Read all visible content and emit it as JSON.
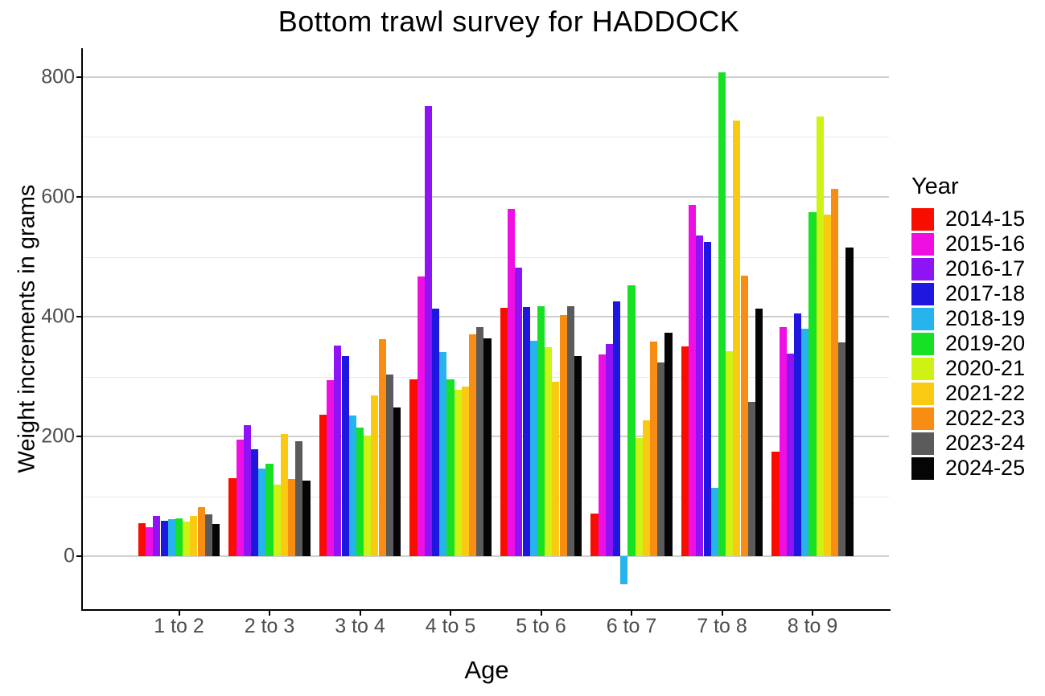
{
  "chart_data": {
    "type": "bar",
    "title": "Bottom trawl survey for HADDOCK",
    "xlabel": "Age",
    "ylabel": "Weight increments in grams",
    "categories": [
      "1 to 2",
      "2 to 3",
      "3 to 4",
      "4 to 5",
      "5 to 6",
      "6 to 7",
      "7 to 8",
      "8 to 9"
    ],
    "series": [
      {
        "name": "2014-15",
        "color": "#F80D00",
        "values": [
          55,
          131,
          236,
          295,
          415,
          72,
          350,
          175
        ]
      },
      {
        "name": "2015-16",
        "color": "#EF0FE3",
        "values": [
          49,
          195,
          294,
          467,
          580,
          337,
          587,
          383
        ]
      },
      {
        "name": "2016-17",
        "color": "#8E14F6",
        "values": [
          67,
          219,
          352,
          752,
          482,
          355,
          535,
          338
        ]
      },
      {
        "name": "2017-18",
        "color": "#1D17DF",
        "values": [
          59,
          179,
          334,
          413,
          416,
          426,
          525,
          405
        ]
      },
      {
        "name": "2018-19",
        "color": "#27B3EB",
        "values": [
          62,
          147,
          235,
          341,
          360,
          -46,
          115,
          380
        ]
      },
      {
        "name": "2019-20",
        "color": "#17E125",
        "values": [
          63,
          155,
          215,
          296,
          418,
          452,
          808,
          575
        ]
      },
      {
        "name": "2020-21",
        "color": "#CEF213",
        "values": [
          58,
          120,
          201,
          278,
          349,
          198,
          342,
          734
        ]
      },
      {
        "name": "2021-22",
        "color": "#F9CA11",
        "values": [
          68,
          205,
          269,
          283,
          292,
          227,
          727,
          571
        ]
      },
      {
        "name": "2022-23",
        "color": "#F78D12",
        "values": [
          82,
          129,
          363,
          370,
          403,
          358,
          468,
          614
        ]
      },
      {
        "name": "2023-24",
        "color": "#5B5B5B",
        "values": [
          70,
          192,
          304,
          383,
          418,
          324,
          258,
          357
        ]
      },
      {
        "name": "2024-25",
        "color": "#050505",
        "values": [
          54,
          127,
          248,
          364,
          335,
          373,
          413,
          515
        ]
      }
    ],
    "ylim": [
      -88,
      848
    ],
    "y_major_ticks": [
      0,
      200,
      400,
      600,
      800
    ],
    "y_minor_ticks": [
      100,
      300,
      500,
      700
    ],
    "grid": true,
    "legend_title": "Year",
    "legend_position": "right",
    "background": "#FFFFFF",
    "axis_text_color": "#4D4D4D"
  }
}
